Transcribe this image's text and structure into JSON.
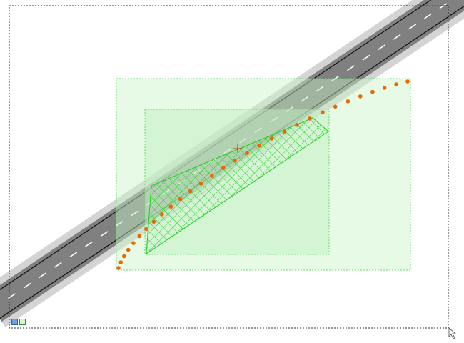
{
  "scene": {
    "background": "#ffffff",
    "road": {
      "asphalt_color": "#808080",
      "shoulder_color": "#d4d4d4",
      "edge_line_color": "#111111",
      "lane_marking_color": "#ffffff",
      "lane_marking_style": "dashed"
    },
    "regions": {
      "outer_fill": "#c8f5c8",
      "inner_fill": "#c0f0c0",
      "border_color": "#66dd66",
      "hatch_color": "#22cc22"
    },
    "path_points": {
      "color": "#e86a00",
      "count": 30
    }
  },
  "status": {
    "icons": [
      "layer-view-icon",
      "grid-view-icon"
    ]
  }
}
